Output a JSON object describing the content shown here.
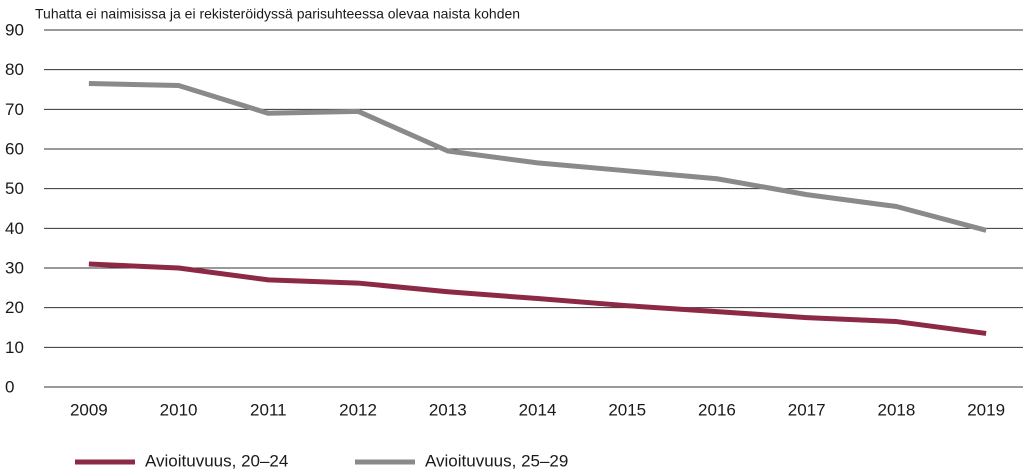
{
  "chart_data": {
    "type": "line",
    "title": "Tuhatta ei naimisissa ja ei rekisteröidyssä parisuhteessa olevaa naista kohden",
    "categories": [
      "2009",
      "2010",
      "2011",
      "2012",
      "2013",
      "2014",
      "2015",
      "2016",
      "2017",
      "2018",
      "2019"
    ],
    "series": [
      {
        "name": "Avioituvuus, 20–24",
        "color": "#8c2a46",
        "values": [
          31,
          30,
          27,
          26.2,
          24,
          22.3,
          20.5,
          19,
          17.5,
          16.5,
          13.5
        ]
      },
      {
        "name": "Avioituvuus, 25–29",
        "color": "#8a8a8a",
        "values": [
          76.5,
          76,
          69,
          69.5,
          59.5,
          56.5,
          54.5,
          52.5,
          48.5,
          45.5,
          39.5
        ]
      }
    ],
    "ylim": [
      0,
      90
    ],
    "yticks": [
      0,
      10,
      20,
      30,
      40,
      50,
      60,
      70,
      80,
      90
    ],
    "grid": true,
    "legend": "bottom"
  }
}
